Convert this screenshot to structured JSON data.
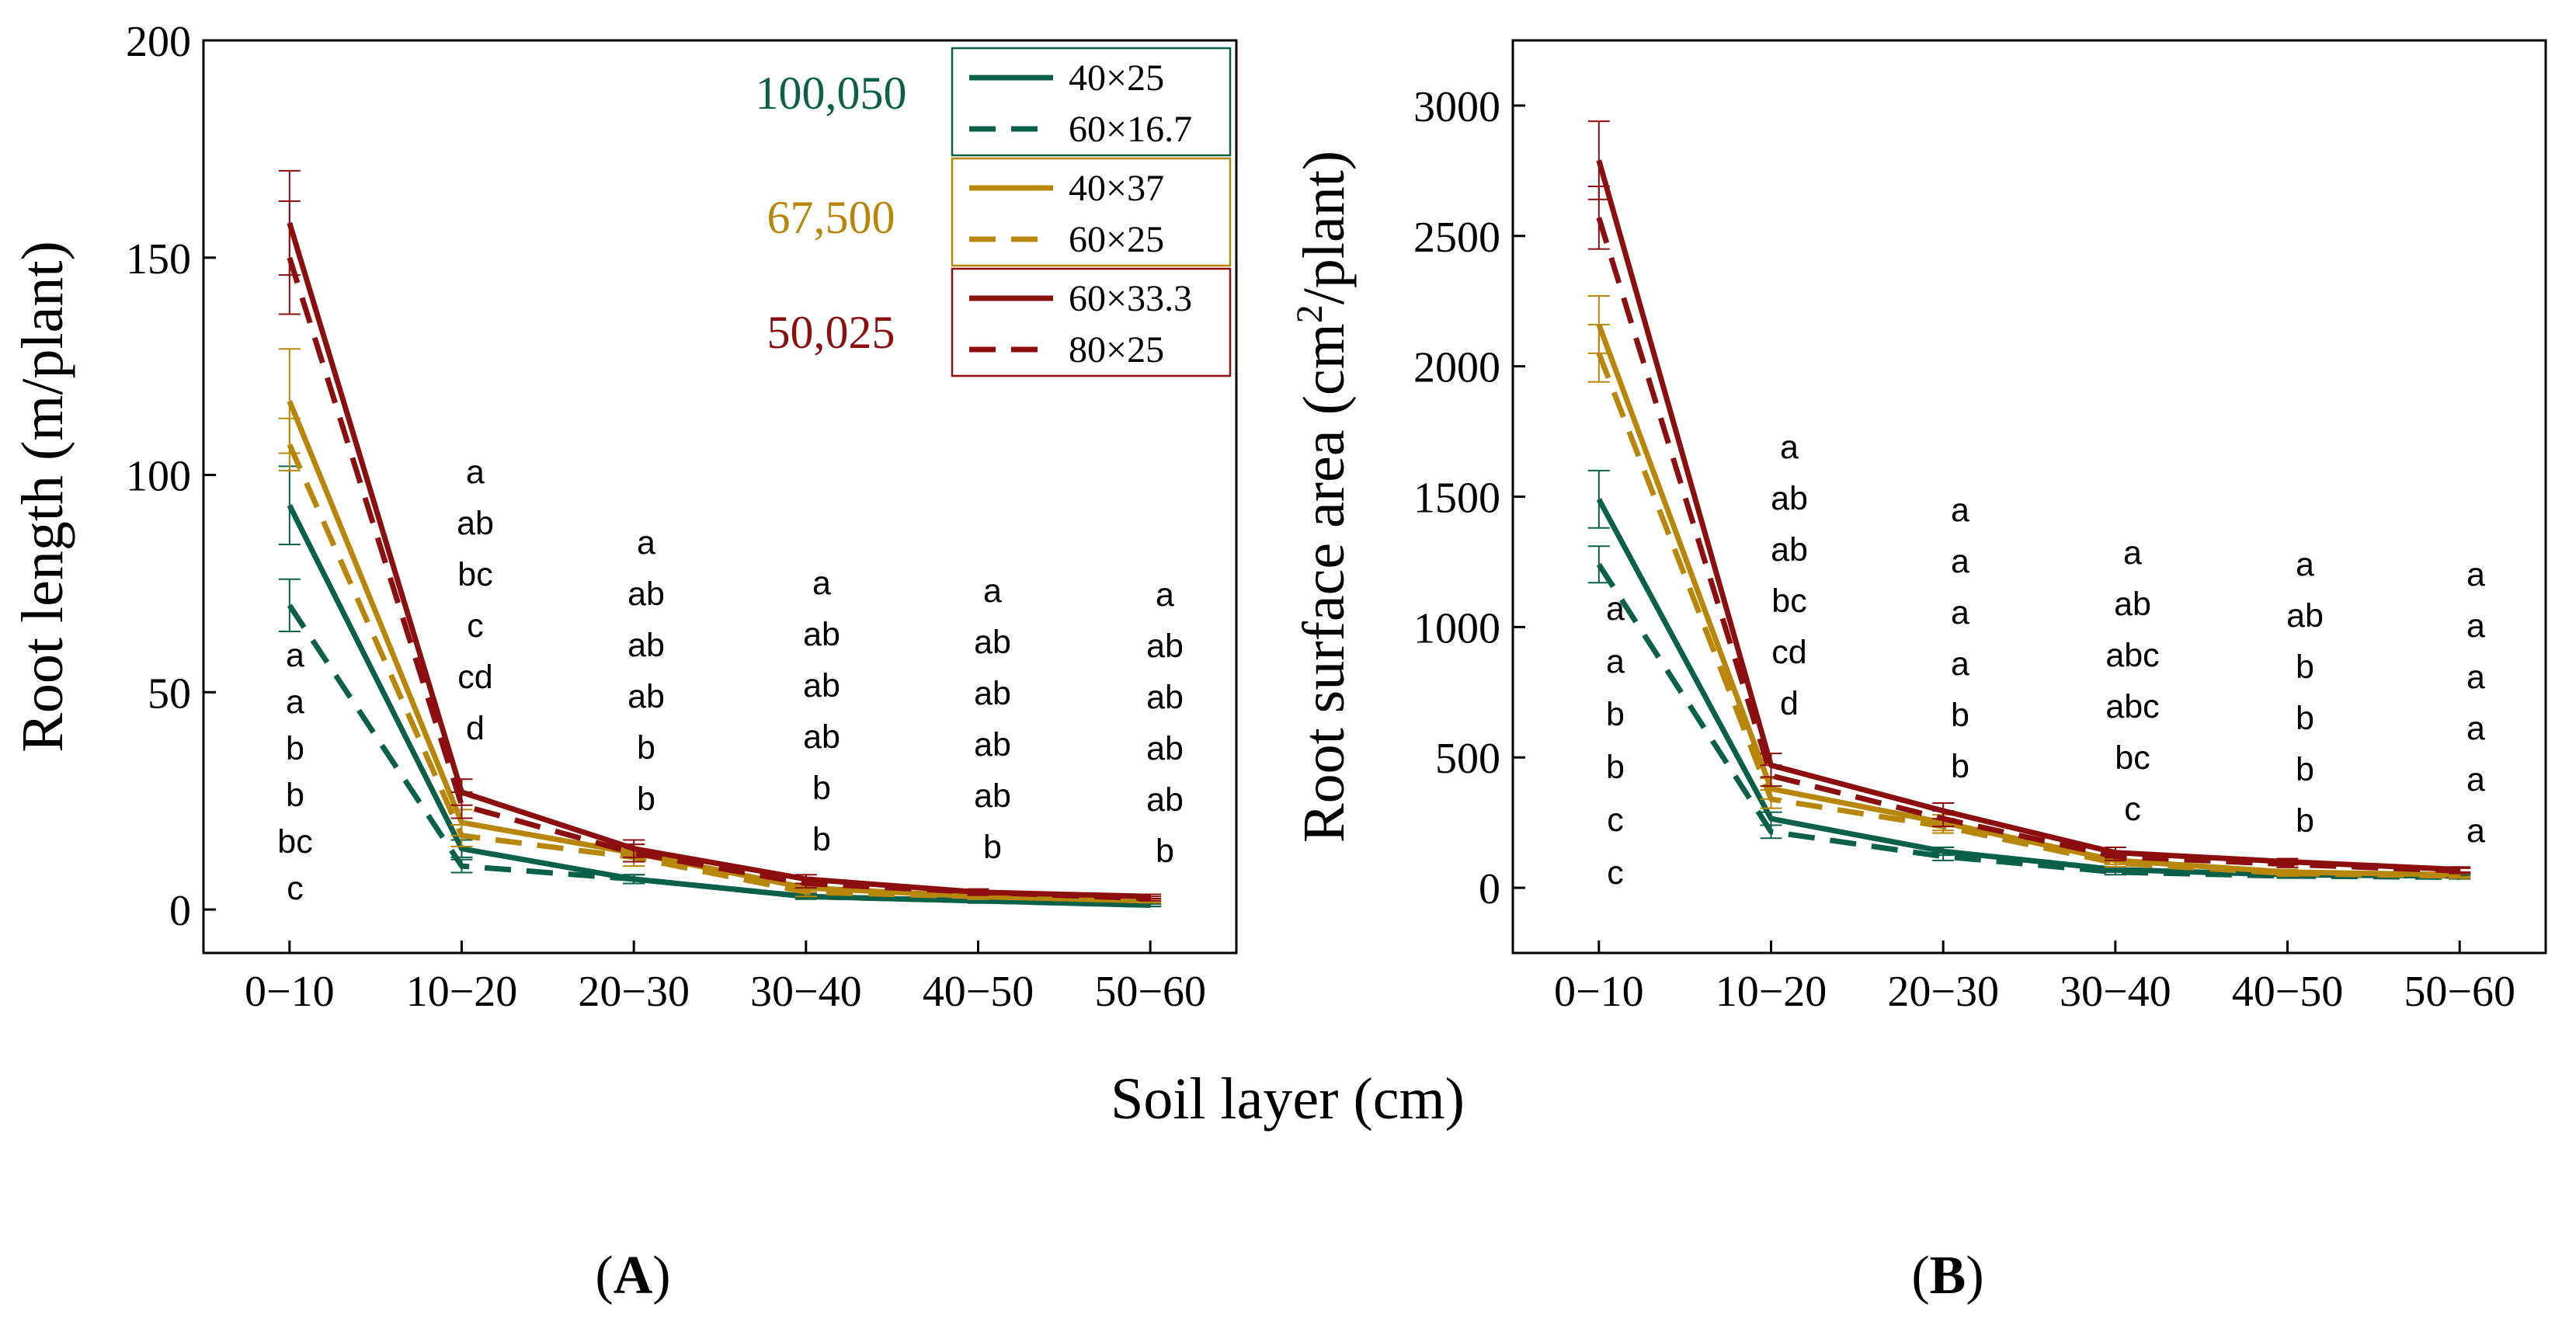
{
  "figure": {
    "shared_xlabel": "Soil layer (cm)",
    "panel_labels": [
      "A",
      "B"
    ]
  },
  "legend": {
    "groups": [
      {
        "density": "100,050",
        "color": "#0a6048",
        "entries": [
          {
            "label": "40×25",
            "dash": false
          },
          {
            "label": "60×16.7",
            "dash": true
          }
        ]
      },
      {
        "density": "67,500",
        "color": "#b8860b",
        "entries": [
          {
            "label": "40×37",
            "dash": false
          },
          {
            "label": "60×25",
            "dash": true
          }
        ]
      },
      {
        "density": "50,025",
        "color": "#8b0f0f",
        "entries": [
          {
            "label": "60×33.3",
            "dash": false
          },
          {
            "label": "80×25",
            "dash": true
          }
        ]
      }
    ]
  },
  "chart_data": [
    {
      "type": "line",
      "panel": "A",
      "title": "",
      "xlabel": "",
      "ylabel": "Root length (m/plant)",
      "categories": [
        "0−10",
        "10−20",
        "20−30",
        "30−40",
        "40−50",
        "50−60"
      ],
      "ylim": [
        -10,
        200
      ],
      "yticks": [
        0,
        50,
        100,
        150,
        200
      ],
      "series": [
        {
          "name": "40×25",
          "color": "#0a6048",
          "dash": false,
          "values": [
            93,
            14,
            7,
            3,
            2,
            1
          ],
          "errors": [
            9,
            2,
            1,
            0.6,
            0.5,
            0.3
          ]
        },
        {
          "name": "60×16.7",
          "color": "#0a6048",
          "dash": true,
          "values": [
            70,
            10,
            7,
            3,
            2,
            1
          ],
          "errors": [
            6,
            1.5,
            1,
            0.6,
            0.5,
            0.3
          ]
        },
        {
          "name": "40×37",
          "color": "#b8860b",
          "dash": false,
          "values": [
            117,
            20,
            13,
            5,
            3,
            2
          ],
          "errors": [
            12,
            3,
            2,
            1,
            0.6,
            0.4
          ]
        },
        {
          "name": "60×25",
          "color": "#b8860b",
          "dash": true,
          "values": [
            107,
            17,
            12,
            4,
            3,
            2
          ],
          "errors": [
            6,
            2.5,
            2,
            1,
            0.6,
            0.4
          ]
        },
        {
          "name": "60×33.3",
          "color": "#8b0f0f",
          "dash": false,
          "values": [
            158,
            27,
            14,
            7,
            4,
            3
          ],
          "errors": [
            12,
            3,
            2,
            1,
            0.7,
            0.5
          ]
        },
        {
          "name": "80×25",
          "color": "#8b0f0f",
          "dash": true,
          "values": [
            150,
            24,
            13,
            6,
            4,
            2.5
          ],
          "errors": [
            13,
            3,
            2,
            1,
            0.7,
            0.5
          ]
        }
      ],
      "significance_letters": [
        [
          "a",
          "a",
          "b",
          "b",
          "bc",
          "c"
        ],
        [
          "a",
          "ab",
          "bc",
          "c",
          "cd",
          "d"
        ],
        [
          "a",
          "ab",
          "ab",
          "ab",
          "b",
          "b"
        ],
        [
          "a",
          "ab",
          "ab",
          "ab",
          "b",
          "b"
        ],
        [
          "a",
          "ab",
          "ab",
          "ab",
          "ab",
          "b"
        ],
        [
          "a",
          "ab",
          "ab",
          "ab",
          "ab",
          "b"
        ]
      ]
    },
    {
      "type": "line",
      "panel": "B",
      "title": "",
      "xlabel": "",
      "ylabel_main": "Root surface area (cm",
      "ylabel_sup": "2",
      "ylabel_end": "/plant)",
      "categories": [
        "0−10",
        "10−20",
        "20−30",
        "30−40",
        "40−50",
        "50−60"
      ],
      "ylim": [
        -250,
        3250
      ],
      "yticks": [
        0,
        500,
        1000,
        1500,
        2000,
        2500,
        3000
      ],
      "series": [
        {
          "name": "40×25",
          "color": "#0a6048",
          "dash": false,
          "values": [
            1490,
            265,
            140,
            70,
            50,
            45
          ],
          "errors": [
            110,
            25,
            15,
            10,
            8,
            6
          ]
        },
        {
          "name": "60×16.7",
          "color": "#0a6048",
          "dash": true,
          "values": [
            1240,
            215,
            120,
            60,
            45,
            40
          ],
          "errors": [
            70,
            25,
            15,
            10,
            8,
            6
          ]
        },
        {
          "name": "40×37",
          "color": "#b8860b",
          "dash": false,
          "values": [
            2160,
            380,
            250,
            105,
            60,
            50
          ],
          "errors": [
            110,
            40,
            30,
            15,
            10,
            8
          ]
        },
        {
          "name": "60×25",
          "color": "#b8860b",
          "dash": true,
          "values": [
            2050,
            340,
            235,
            95,
            55,
            45
          ],
          "errors": [
            110,
            35,
            25,
            15,
            10,
            8
          ]
        },
        {
          "name": "60×33.3",
          "color": "#8b0f0f",
          "dash": false,
          "values": [
            2790,
            470,
            295,
            135,
            100,
            70
          ],
          "errors": [
            150,
            45,
            30,
            20,
            12,
            10
          ]
        },
        {
          "name": "80×25",
          "color": "#8b0f0f",
          "dash": true,
          "values": [
            2570,
            430,
            265,
            120,
            90,
            65
          ],
          "errors": [
            120,
            40,
            30,
            15,
            12,
            10
          ]
        }
      ],
      "significance_letters": [
        [
          "a",
          "a",
          "b",
          "b",
          "c",
          "c"
        ],
        [
          "a",
          "ab",
          "ab",
          "bc",
          "cd",
          "d"
        ],
        [
          "a",
          "a",
          "a",
          "a",
          "b",
          "b"
        ],
        [
          "a",
          "ab",
          "abc",
          "abc",
          "bc",
          "c"
        ],
        [
          "a",
          "ab",
          "b",
          "b",
          "b",
          "b"
        ],
        [
          "a",
          "a",
          "a",
          "a",
          "a",
          "a"
        ]
      ]
    }
  ]
}
